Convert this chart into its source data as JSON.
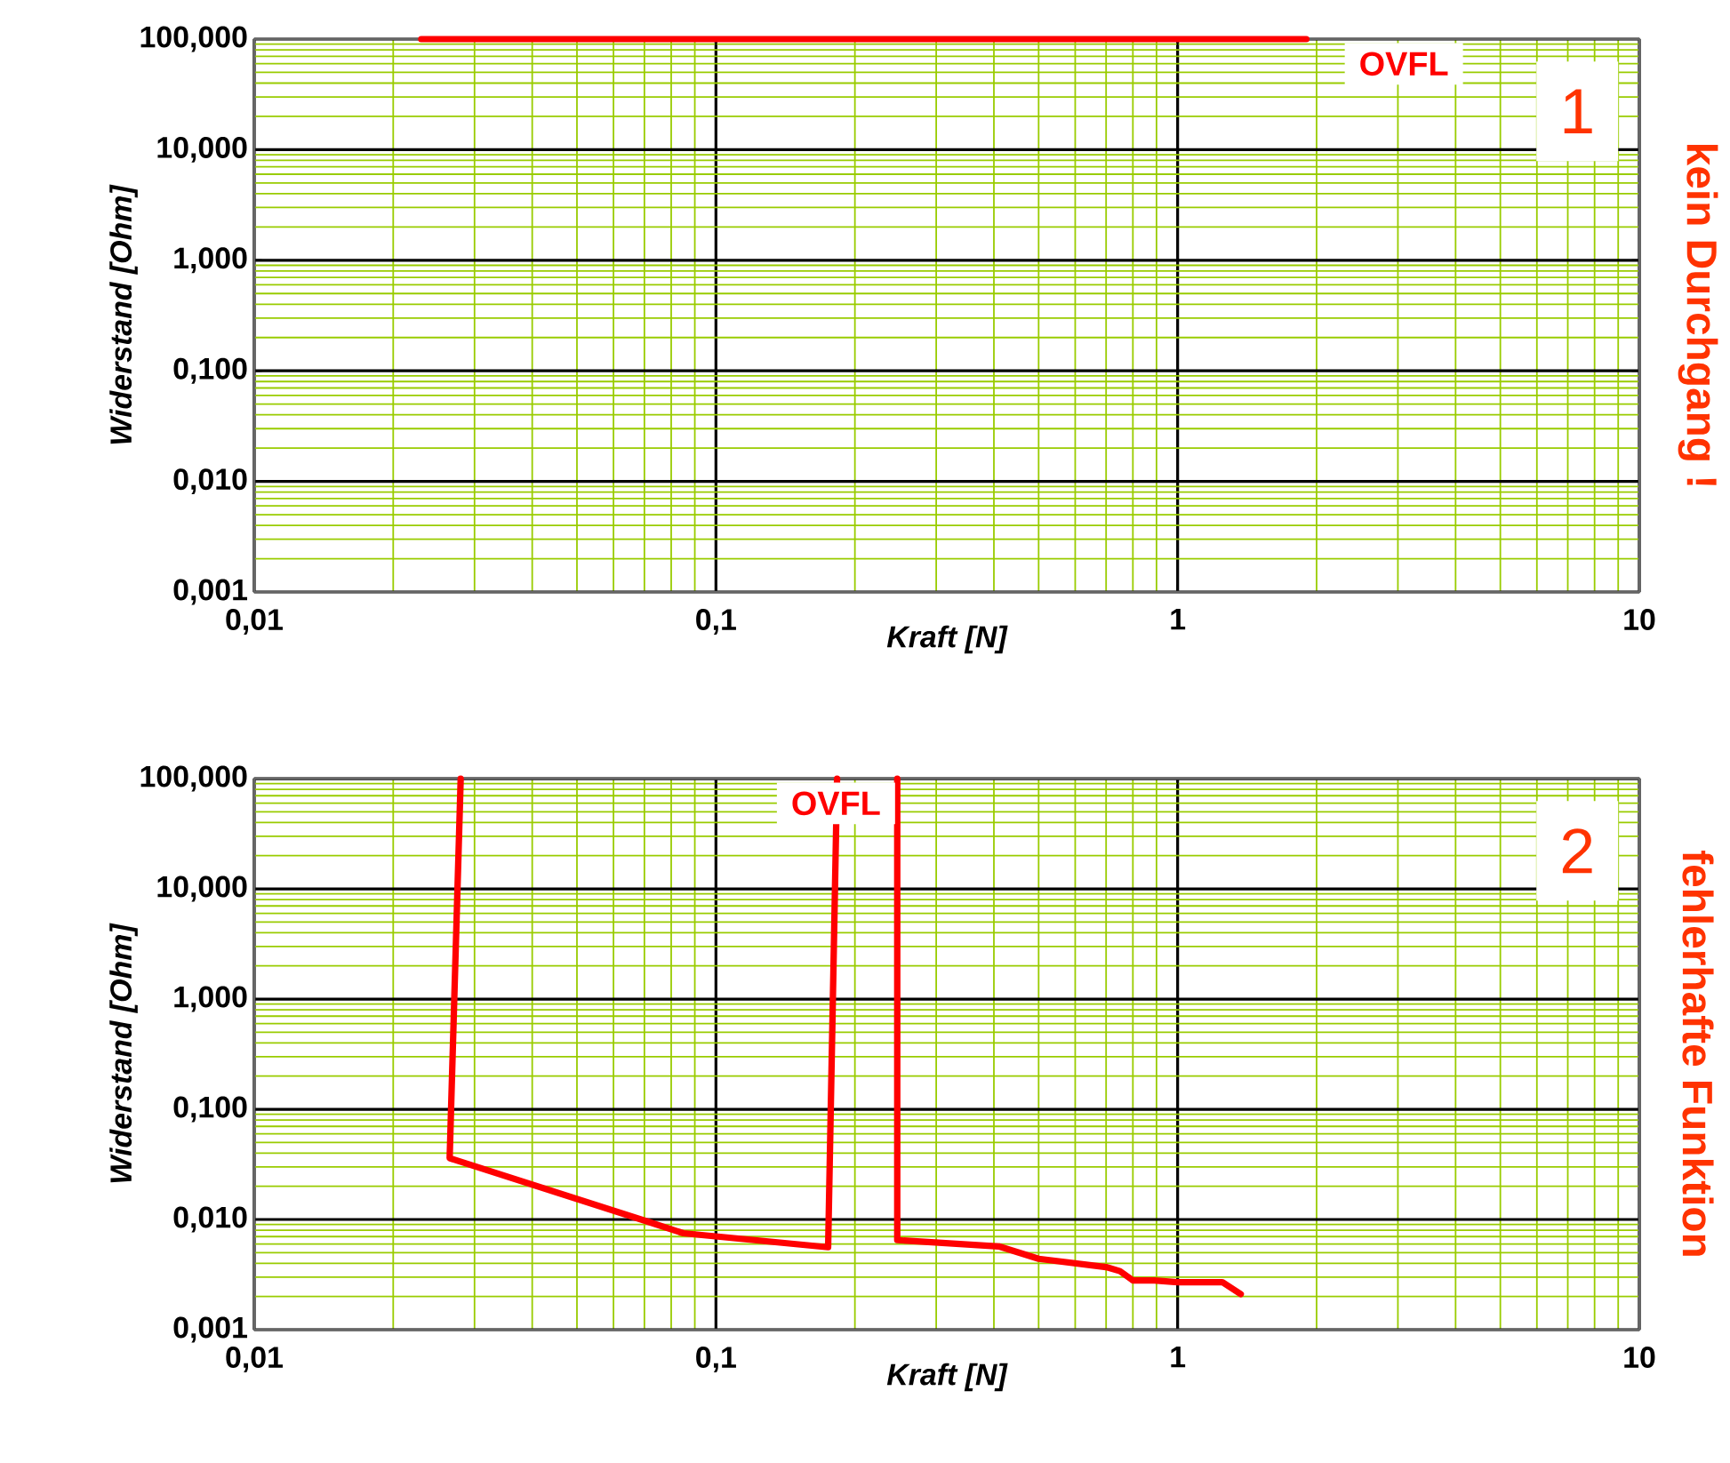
{
  "chart_data": [
    {
      "type": "line",
      "xlabel": "Kraft [N]",
      "ylabel": "Widerstand [Ohm]",
      "log": "xy",
      "grid": true,
      "marker": "none",
      "xlim": [
        0.01,
        10
      ],
      "ylim": [
        0.001,
        100
      ],
      "xticks": [
        {
          "value": 0.01,
          "label": "0,01"
        },
        {
          "value": 0.02,
          "label": null
        },
        {
          "value": 0.03,
          "label": null
        },
        {
          "value": 0.04,
          "label": null
        },
        {
          "value": 0.05,
          "label": null
        },
        {
          "value": 0.06,
          "label": null
        },
        {
          "value": 0.07,
          "label": null
        },
        {
          "value": 0.08,
          "label": null
        },
        {
          "value": 0.09,
          "label": null
        },
        {
          "value": 0.1,
          "label": "0,1"
        },
        {
          "value": 0.2,
          "label": null
        },
        {
          "value": 0.3,
          "label": null
        },
        {
          "value": 0.4,
          "label": null
        },
        {
          "value": 0.5,
          "label": null
        },
        {
          "value": 0.6,
          "label": null
        },
        {
          "value": 0.7,
          "label": null
        },
        {
          "value": 0.8,
          "label": null
        },
        {
          "value": 0.9,
          "label": null
        },
        1,
        {
          "value": 2,
          "label": null
        },
        {
          "value": 3,
          "label": null
        },
        {
          "value": 4,
          "label": null
        },
        {
          "value": 5,
          "label": null
        },
        {
          "value": 6,
          "label": null
        },
        {
          "value": 7,
          "label": null
        },
        {
          "value": 8,
          "label": null
        },
        {
          "value": 9,
          "label": null
        },
        10
      ],
      "yticks": [
        {
          "value": 0.001,
          "label": "0,001"
        },
        {
          "value": 0.002,
          "label": null
        },
        {
          "value": 0.003,
          "label": null
        },
        {
          "value": 0.004,
          "label": null
        },
        {
          "value": 0.005,
          "label": null
        },
        {
          "value": 0.006,
          "label": null
        },
        {
          "value": 0.007,
          "label": null
        },
        {
          "value": 0.008,
          "label": null
        },
        {
          "value": 0.009,
          "label": null
        },
        {
          "value": 0.01,
          "label": "0,010"
        },
        {
          "value": 0.02,
          "label": null
        },
        {
          "value": 0.03,
          "label": null
        },
        {
          "value": 0.04,
          "label": null
        },
        {
          "value": 0.05,
          "label": null
        },
        {
          "value": 0.06,
          "label": null
        },
        {
          "value": 0.07,
          "label": null
        },
        {
          "value": 0.08,
          "label": null
        },
        {
          "value": 0.09,
          "label": null
        },
        {
          "value": 0.1,
          "label": "0,100"
        },
        {
          "value": 0.2,
          "label": null
        },
        {
          "value": 0.3,
          "label": null
        },
        {
          "value": 0.4,
          "label": null
        },
        {
          "value": 0.5,
          "label": null
        },
        {
          "value": 0.6,
          "label": null
        },
        {
          "value": 0.7,
          "label": null
        },
        {
          "value": 0.8,
          "label": null
        },
        {
          "value": 0.9,
          "label": null
        },
        {
          "value": 1,
          "label": "1,000"
        },
        {
          "value": 2,
          "label": null
        },
        {
          "value": 3,
          "label": null
        },
        {
          "value": 4,
          "label": null
        },
        {
          "value": 5,
          "label": null
        },
        {
          "value": 6,
          "label": null
        },
        {
          "value": 7,
          "label": null
        },
        {
          "value": 8,
          "label": null
        },
        {
          "value": 9,
          "label": null
        },
        {
          "value": 10,
          "label": "10,000"
        },
        {
          "value": 20,
          "label": null
        },
        {
          "value": 30,
          "label": null
        },
        {
          "value": 40,
          "label": null
        },
        {
          "value": 50,
          "label": null
        },
        {
          "value": 60,
          "label": null
        },
        {
          "value": 70,
          "label": null
        },
        {
          "value": 80,
          "label": null
        },
        {
          "value": 90,
          "label": null
        },
        {
          "value": 100,
          "label": "100,000"
        }
      ],
      "series": [
        {
          "color": "#ff0000",
          "x": [
            0.023,
            1.9
          ],
          "values": [
            100,
            100
          ]
        }
      ],
      "annotations": [
        "OVFL",
        "1",
        "kein Durchgang !"
      ]
    },
    {
      "type": "line",
      "xlabel": "Kraft [N]",
      "ylabel": "Widerstand [Ohm]",
      "log": "xy",
      "grid": true,
      "marker": "none",
      "xlim": [
        0.01,
        10
      ],
      "ylim": [
        0.001,
        100
      ],
      "xticks": [
        {
          "value": 0.01,
          "label": "0,01"
        },
        {
          "value": 0.02,
          "label": null
        },
        {
          "value": 0.03,
          "label": null
        },
        {
          "value": 0.04,
          "label": null
        },
        {
          "value": 0.05,
          "label": null
        },
        {
          "value": 0.06,
          "label": null
        },
        {
          "value": 0.07,
          "label": null
        },
        {
          "value": 0.08,
          "label": null
        },
        {
          "value": 0.09,
          "label": null
        },
        {
          "value": 0.1,
          "label": "0,1"
        },
        {
          "value": 0.2,
          "label": null
        },
        {
          "value": 0.3,
          "label": null
        },
        {
          "value": 0.4,
          "label": null
        },
        {
          "value": 0.5,
          "label": null
        },
        {
          "value": 0.6,
          "label": null
        },
        {
          "value": 0.7,
          "label": null
        },
        {
          "value": 0.8,
          "label": null
        },
        {
          "value": 0.9,
          "label": null
        },
        1,
        {
          "value": 2,
          "label": null
        },
        {
          "value": 3,
          "label": null
        },
        {
          "value": 4,
          "label": null
        },
        {
          "value": 5,
          "label": null
        },
        {
          "value": 6,
          "label": null
        },
        {
          "value": 7,
          "label": null
        },
        {
          "value": 8,
          "label": null
        },
        {
          "value": 9,
          "label": null
        },
        10
      ],
      "yticks": [
        {
          "value": 0.001,
          "label": "0,001"
        },
        {
          "value": 0.002,
          "label": null
        },
        {
          "value": 0.003,
          "label": null
        },
        {
          "value": 0.004,
          "label": null
        },
        {
          "value": 0.005,
          "label": null
        },
        {
          "value": 0.006,
          "label": null
        },
        {
          "value": 0.007,
          "label": null
        },
        {
          "value": 0.008,
          "label": null
        },
        {
          "value": 0.009,
          "label": null
        },
        {
          "value": 0.01,
          "label": "0,010"
        },
        {
          "value": 0.02,
          "label": null
        },
        {
          "value": 0.03,
          "label": null
        },
        {
          "value": 0.04,
          "label": null
        },
        {
          "value": 0.05,
          "label": null
        },
        {
          "value": 0.06,
          "label": null
        },
        {
          "value": 0.07,
          "label": null
        },
        {
          "value": 0.08,
          "label": null
        },
        {
          "value": 0.09,
          "label": null
        },
        {
          "value": 0.1,
          "label": "0,100"
        },
        {
          "value": 0.2,
          "label": null
        },
        {
          "value": 0.3,
          "label": null
        },
        {
          "value": 0.4,
          "label": null
        },
        {
          "value": 0.5,
          "label": null
        },
        {
          "value": 0.6,
          "label": null
        },
        {
          "value": 0.7,
          "label": null
        },
        {
          "value": 0.8,
          "label": null
        },
        {
          "value": 0.9,
          "label": null
        },
        {
          "value": 1,
          "label": "1,000"
        },
        {
          "value": 2,
          "label": null
        },
        {
          "value": 3,
          "label": null
        },
        {
          "value": 4,
          "label": null
        },
        {
          "value": 5,
          "label": null
        },
        {
          "value": 6,
          "label": null
        },
        {
          "value": 7,
          "label": null
        },
        {
          "value": 8,
          "label": null
        },
        {
          "value": 9,
          "label": null
        },
        {
          "value": 10,
          "label": "10,000"
        },
        {
          "value": 20,
          "label": null
        },
        {
          "value": 30,
          "label": null
        },
        {
          "value": 40,
          "label": null
        },
        {
          "value": 50,
          "label": null
        },
        {
          "value": 60,
          "label": null
        },
        {
          "value": 70,
          "label": null
        },
        {
          "value": 80,
          "label": null
        },
        {
          "value": 90,
          "label": null
        },
        {
          "value": 100,
          "label": "100,000"
        }
      ],
      "series": [
        {
          "color": "#ff0000",
          "x": [
            0.028,
            0.0265,
            0.071,
            0.085,
            0.175,
            0.183,
            0.21,
            0.247,
            0.247,
            0.41,
            0.5,
            0.7,
            0.75,
            0.8,
            0.89,
            1.0,
            1.25,
            1.37
          ],
          "values": [
            100,
            0.036,
            0.0096,
            0.0075,
            0.0056,
            100,
            null,
            100,
            0.0065,
            0.0057,
            0.0044,
            0.0037,
            0.0034,
            0.0028,
            0.0028,
            0.0027,
            0.0027,
            0.0021
          ]
        }
      ],
      "annotations": [
        "OVFL",
        "2",
        "fehlerhafte Funktion"
      ]
    }
  ]
}
